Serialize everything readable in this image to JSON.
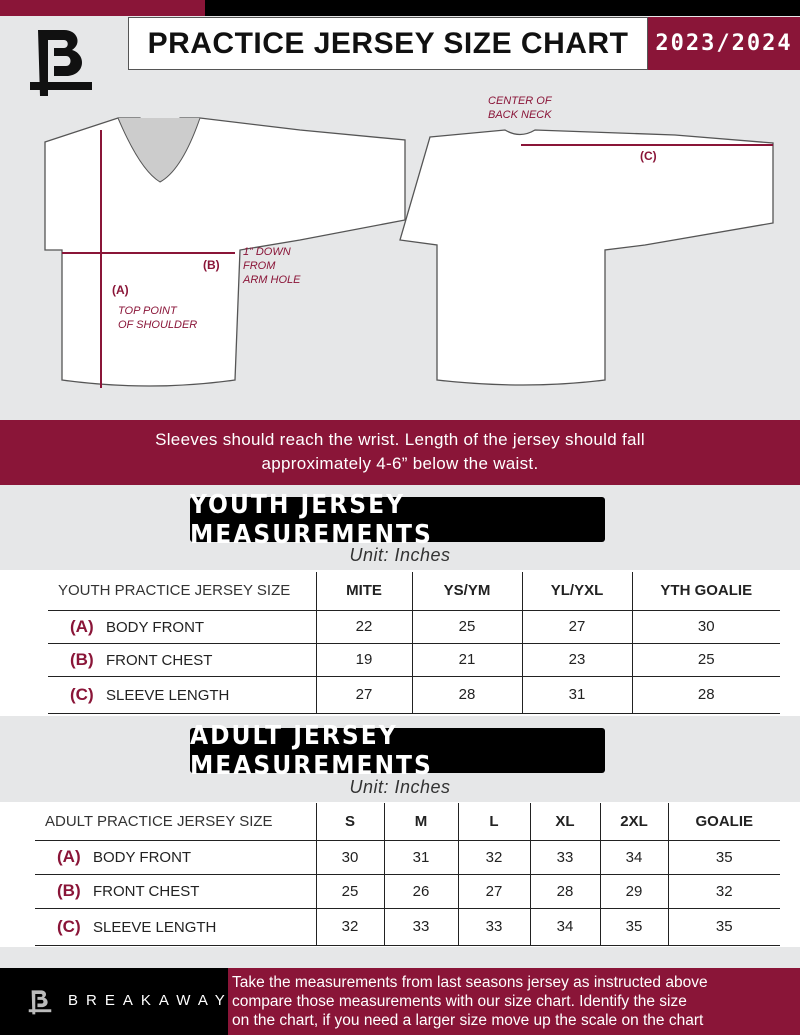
{
  "header": {
    "title": "PRACTICE JERSEY SIZE CHART",
    "season": "2023/2024",
    "logo": "B"
  },
  "diagram": {
    "label_a": "(A)",
    "label_b": "(B)",
    "label_c": "(C)",
    "note_top_point": [
      "TOP POINT",
      "OF SHOULDER"
    ],
    "note_arm_hole": [
      "1” DOWN",
      "FROM",
      "ARM HOLE"
    ],
    "note_back_neck": [
      "CENTER OF",
      "BACK NECK"
    ]
  },
  "instructions": [
    "Sleeves should reach the wrist. Length of the jersey should fall",
    "approximately 4-6” below the waist."
  ],
  "youth": {
    "title": "YOUTH JERSEY MEASUREMENTS",
    "unit": "Unit: Inches",
    "header": [
      "YOUTH PRACTICE JERSEY SIZE",
      "MITE",
      "YS/YM",
      "YL/YXL",
      "YTH GOALIE"
    ],
    "rows": [
      {
        "letter": "(A)",
        "label": "BODY FRONT",
        "values": [
          "22",
          "25",
          "27",
          "30"
        ]
      },
      {
        "letter": "(B)",
        "label": "FRONT CHEST",
        "values": [
          "19",
          "21",
          "23",
          "25"
        ]
      },
      {
        "letter": "(C)",
        "label": "SLEEVE LENGTH",
        "values": [
          "27",
          "28",
          "31",
          "28"
        ]
      }
    ]
  },
  "adult": {
    "title": "ADULT JERSEY MEASUREMENTS",
    "unit": "Unit: Inches",
    "header": [
      "ADULT PRACTICE JERSEY SIZE",
      "S",
      "M",
      "L",
      "XL",
      "2XL",
      "GOALIE"
    ],
    "rows": [
      {
        "letter": "(A)",
        "label": "BODY FRONT",
        "values": [
          "30",
          "31",
          "32",
          "33",
          "34",
          "35"
        ]
      },
      {
        "letter": "(B)",
        "label": "FRONT CHEST",
        "values": [
          "25",
          "26",
          "27",
          "28",
          "29",
          "32"
        ]
      },
      {
        "letter": "(C)",
        "label": "SLEEVE LENGTH",
        "values": [
          "32",
          "33",
          "33",
          "34",
          "35",
          "35"
        ]
      }
    ]
  },
  "footer": {
    "brand": "BREAKAWAY",
    "text": [
      "Take the measurements from last seasons jersey as instructed above",
      "compare those measurements  with our size chart. Identify the size",
      "on the chart, if you need a larger size move up the scale on the chart"
    ]
  },
  "colors": {
    "accent": "#8a1538",
    "dark": "#000000",
    "background": "#e6e7e8"
  }
}
